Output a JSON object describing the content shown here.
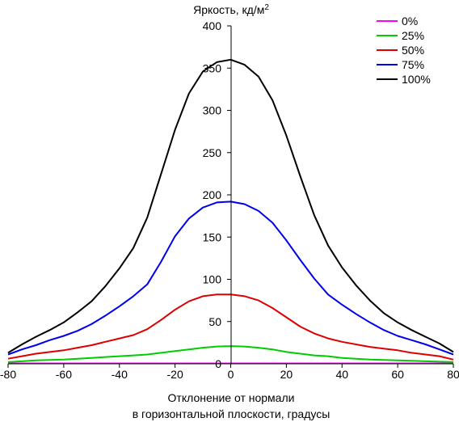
{
  "chart_data": {
    "type": "line",
    "ylabel": "Яркость, кд/м",
    "ylabel_superscript": "2",
    "xlabel_line1": "Отклонение от нормали",
    "xlabel_line2": "в горизонтальной плоскости, градусы",
    "xlim": [
      -80,
      80
    ],
    "ylim": [
      0,
      400
    ],
    "x_ticks": [
      -80,
      -60,
      -40,
      -20,
      0,
      20,
      40,
      60,
      80
    ],
    "y_ticks": [
      0,
      50,
      100,
      150,
      200,
      250,
      300,
      350,
      400
    ],
    "grid": false,
    "legend_position": "top-right",
    "x": [
      -80,
      -75,
      -70,
      -65,
      -60,
      -55,
      -50,
      -45,
      -40,
      -35,
      -30,
      -25,
      -20,
      -15,
      -10,
      -5,
      0,
      5,
      10,
      15,
      20,
      25,
      30,
      35,
      40,
      45,
      50,
      55,
      60,
      65,
      70,
      75,
      80
    ],
    "series": [
      {
        "name": "0%",
        "color": "#ff00ff",
        "values": [
          0.5,
          0.5,
          0.5,
          0.5,
          0.5,
          0.5,
          0.5,
          0.5,
          0.5,
          0.5,
          0.5,
          0.5,
          0.5,
          0.5,
          0.5,
          0.5,
          0.5,
          0.5,
          0.5,
          0.5,
          0.5,
          0.5,
          0.5,
          0.5,
          0.5,
          0.5,
          0.5,
          0.5,
          0.5,
          0.5,
          0.5,
          0.5,
          0.5
        ]
      },
      {
        "name": "25%",
        "color": "#00cc00",
        "values": [
          2,
          3,
          4,
          4.5,
          5,
          6,
          7,
          8,
          9,
          10,
          11,
          13,
          15,
          17,
          19,
          20.5,
          21,
          20.5,
          19,
          17,
          14,
          12,
          10,
          9,
          7,
          6,
          5,
          4.5,
          4,
          3.5,
          3,
          2.5,
          2
        ]
      },
      {
        "name": "50%",
        "color": "#dd0000",
        "values": [
          6,
          9,
          12,
          14,
          16,
          19,
          22,
          26,
          30,
          34,
          41,
          52,
          64,
          74,
          80,
          82,
          82,
          80,
          75,
          66,
          55,
          44,
          36,
          30,
          26,
          23,
          20,
          18,
          16,
          13,
          11,
          9,
          5
        ]
      },
      {
        "name": "75%",
        "color": "#0000ee",
        "values": [
          11,
          17,
          22,
          28,
          33,
          39,
          47,
          57,
          68,
          80,
          94,
          121,
          151,
          172,
          185,
          191,
          192,
          189,
          181,
          167,
          146,
          123,
          101,
          82,
          70,
          59,
          49,
          40,
          33,
          28,
          23,
          17,
          11
        ]
      },
      {
        "name": "100%",
        "color": "#000000",
        "values": [
          13,
          23,
          32,
          40,
          49,
          61,
          74,
          92,
          113,
          137,
          173,
          225,
          277,
          320,
          346,
          357,
          360,
          354,
          340,
          312,
          270,
          222,
          176,
          140,
          114,
          93,
          75,
          60,
          49,
          40,
          32,
          24,
          14
        ]
      }
    ]
  }
}
